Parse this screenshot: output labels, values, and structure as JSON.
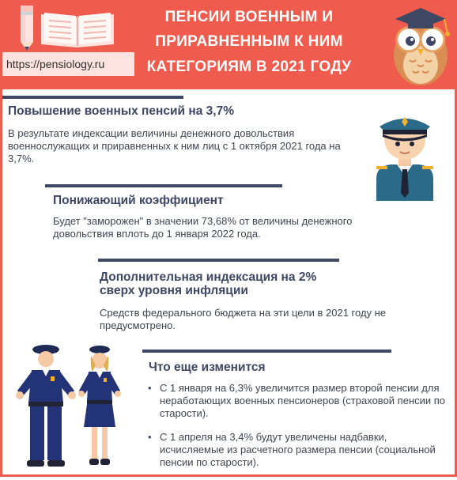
{
  "header": {
    "title_lines": [
      "ПЕНСИИ ВОЕННЫМ И",
      "ПРИРАВНЕННЫМ К НИМ",
      "КАТЕГОРИЯМ В 2021 ГОДУ"
    ],
    "url": "https://pensiology.ru"
  },
  "icons": {
    "pencil": "pencil-icon",
    "book": "open-book-icon",
    "owl": "owl-graduate-icon",
    "officer": "officer-portrait-icon",
    "police": "police-couple-icon"
  },
  "colors": {
    "header_bg": "#ef5b4c",
    "accent_dark": "#3e4763",
    "url_bg": "#fde3df"
  },
  "sections": [
    {
      "title": "Повышение военных пенсий на 3,7%",
      "text": "В результате индексации величины денежного довольствия военнослужащих и приравненных к ним лиц с 1 октября 2021 года на 3,7%."
    },
    {
      "title": "Понижающий коэффициент",
      "text": "Будет \"заморожен\" в значении 73,68% от величины денежного довольствия вплоть до 1 января 2022 года."
    },
    {
      "title_line1": "Дополнительная индексация на 2%",
      "title_line2": "сверх уровня инфляции",
      "text": "Средств федерального бюджета на эти цели в 2021 году не предусмотрено."
    },
    {
      "title": "Что еще изменится",
      "bullets": [
        "С 1 января на 6,3% увеличится размер второй пенсии для неработающих военных пенсионеров (страховой пенсии по старости).",
        "С 1 апреля на 3,4% будут увеличены надбавки, исчисляемые из расчетного размера пенсии (социальной пенсии по старости)."
      ]
    }
  ]
}
